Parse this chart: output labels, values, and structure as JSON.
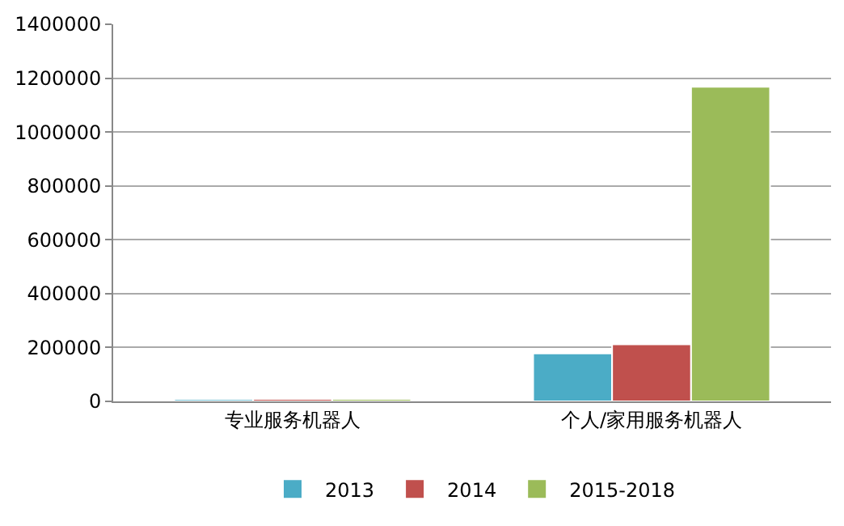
{
  "chart_data": {
    "type": "bar",
    "categories": [
      "专业服务机器人",
      "个人/家用服务机器人"
    ],
    "series": [
      {
        "name": "2013",
        "color": "#4bacc6",
        "values": [
          8000,
          178000
        ]
      },
      {
        "name": "2014",
        "color": "#c0504d",
        "values": [
          9000,
          212000
        ]
      },
      {
        "name": "2015-2018",
        "color": "#9bbb59",
        "values": [
          9000,
          1168000
        ]
      }
    ],
    "ylim": [
      0,
      1400000
    ],
    "yticks": [
      0,
      200000,
      400000,
      600000,
      800000,
      1000000,
      1200000,
      1400000
    ],
    "grid": "y",
    "legend": "bottom"
  }
}
